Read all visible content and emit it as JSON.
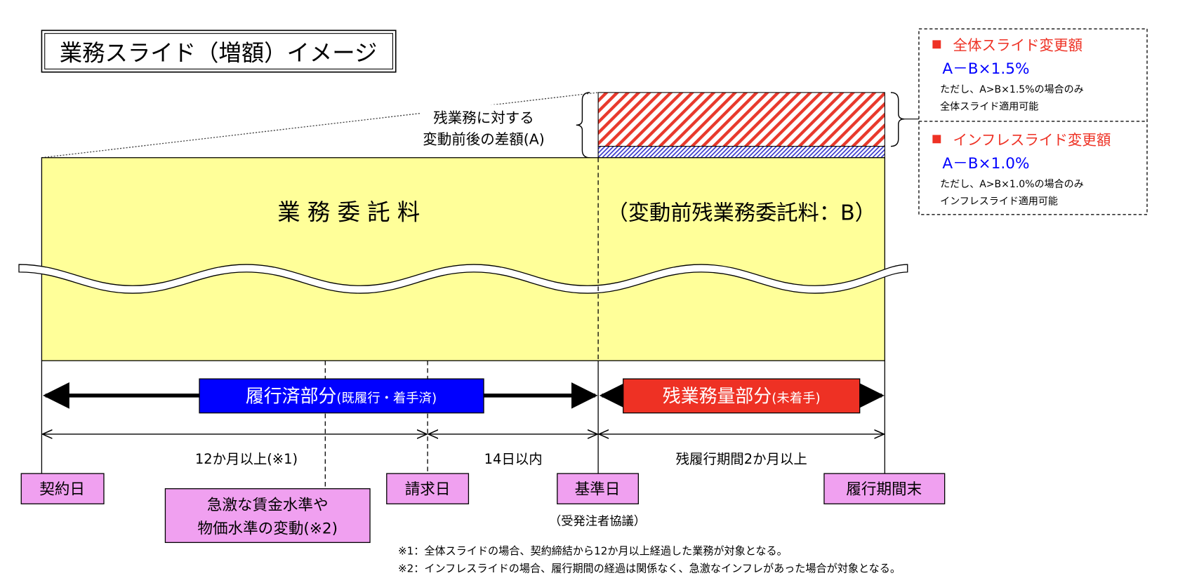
{
  "title": "業務スライド（増額）イメージ",
  "legend": {
    "overall": {
      "heading": "全体スライド変更額",
      "formula": "A－B×1.5%",
      "note1": "ただし、A>B×1.5%の場合のみ",
      "note2": "全体スライド適用可能"
    },
    "inflation": {
      "heading": "インフレスライド変更額",
      "formula": "A－B×1.0%",
      "note1": "ただし、A>B×1.0%の場合のみ",
      "note2": "インフレスライド適用可能"
    },
    "bullet_color": "#ee3124",
    "formula_color": "#0000ff"
  },
  "difference_label": {
    "line1": "残業務に対する",
    "line2": "変動前後の差額(A)"
  },
  "fee_label": "業 務 委 託 料",
  "remaining_fee_label": "（変動前残業務委託料：B）",
  "performed_part": {
    "main": "履行済部分",
    "sub": "(既履行・着手済)",
    "color": "#0000ff"
  },
  "remaining_part": {
    "main": "残業務量部分",
    "sub": "(未着手)",
    "color": "#ee3124"
  },
  "periods": {
    "p1": "12か月以上(※1)",
    "p2": "14日以内",
    "p3": "残履行期間2か月以上"
  },
  "milestones": {
    "contract": "契約日",
    "change_line1": "急激な賃金水準や",
    "change_line2": "物価水準の変動(※2)",
    "claim": "請求日",
    "base": "基準日",
    "base_note": "（受発注者協議）",
    "end": "履行期間末"
  },
  "footnotes": [
    "※1：全体スライドの場合、契約締結から12か月以上経過した業務が対象となる。",
    "※2：インフレスライドの場合、履行期間の経過は関係なく、急激なインフレがあった場合が対象となる。"
  ],
  "colors": {
    "fee_fill": "#ffff99",
    "milestone_fill": "#f0a0f0"
  }
}
